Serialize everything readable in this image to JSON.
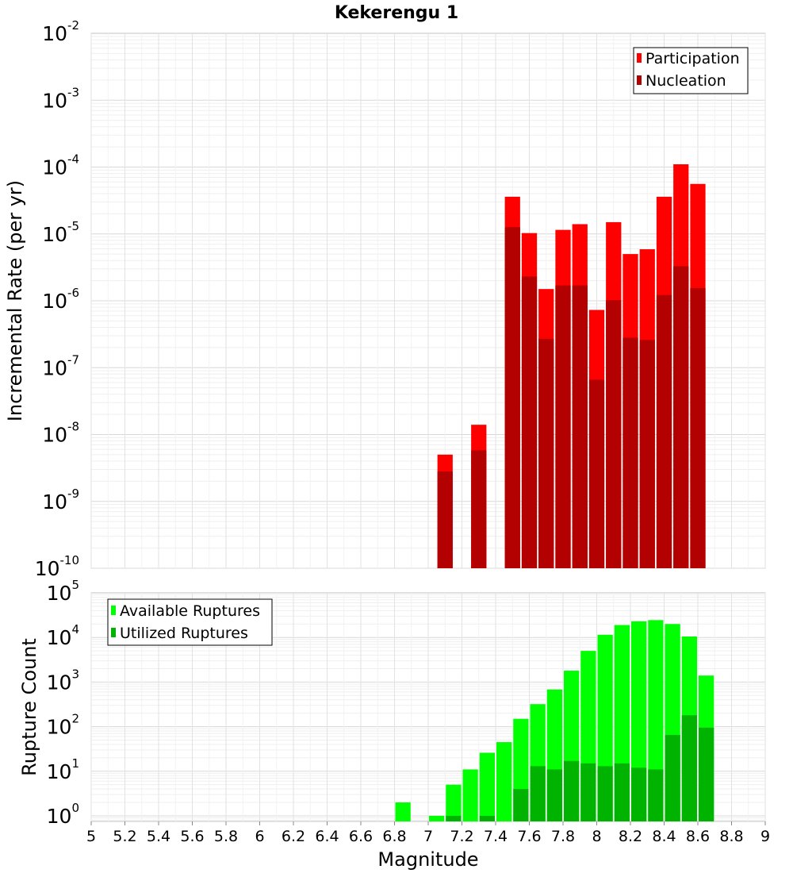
{
  "chart_data": [
    {
      "type": "bar",
      "title": "Kekerengu 1",
      "xlabel": "",
      "ylabel": "Incremental Rate (per yr)",
      "yscale": "log",
      "xlim": [
        5,
        9
      ],
      "ylim": [
        1e-10,
        0.01
      ],
      "y_tick_exponents": [
        -10,
        -9,
        -8,
        -7,
        -6,
        -5,
        -4,
        -3,
        -2
      ],
      "grid": true,
      "legend_position": "top-right",
      "x": [
        7.1,
        7.3,
        7.5,
        7.6,
        7.7,
        7.8,
        7.9,
        8.0,
        8.1,
        8.2,
        8.3,
        8.4,
        8.5,
        8.6
      ],
      "series": [
        {
          "name": "Participation",
          "color": "#ff0000",
          "values": [
            5e-09,
            1.4e-08,
            3.6e-05,
            1.03e-05,
            1.5e-06,
            1.15e-05,
            1.4e-05,
            7.3e-07,
            1.5e-05,
            5e-06,
            5.9e-06,
            3.6e-05,
            0.00011,
            5.6e-05
          ]
        },
        {
          "name": "Nucleation",
          "color": "#b30000",
          "values": [
            2.8e-09,
            5.8e-09,
            1.26e-05,
            2.3e-06,
            2.7e-07,
            1.7e-06,
            1.7e-06,
            6.6e-08,
            1.02e-06,
            2.8e-07,
            2.6e-07,
            1.22e-06,
            3.3e-06,
            1.55e-06
          ]
        }
      ]
    },
    {
      "type": "bar",
      "title": "",
      "xlabel": "Magnitude",
      "ylabel": "Rupture Count",
      "yscale": "log",
      "xlim": [
        5,
        9
      ],
      "ylim": [
        0.75,
        100000.0
      ],
      "y_tick_exponents": [
        0,
        1,
        2,
        3,
        4,
        5
      ],
      "x_tick_labels": [
        "5",
        "5.2",
        "5.4",
        "5.6",
        "5.8",
        "6",
        "6.2",
        "6.4",
        "6.6",
        "6.8",
        "7",
        "7.2",
        "7.4",
        "7.6",
        "7.8",
        "8",
        "8.2",
        "8.4",
        "8.6",
        "8.8",
        "9"
      ],
      "grid": true,
      "legend_position": "top-left",
      "x": [
        6.85,
        7.05,
        7.15,
        7.25,
        7.35,
        7.45,
        7.55,
        7.65,
        7.75,
        7.85,
        7.95,
        8.05,
        8.15,
        8.25,
        8.35,
        8.45,
        8.55,
        8.65
      ],
      "series": [
        {
          "name": "Available Ruptures",
          "color": "#00ff00",
          "values": [
            2,
            1,
            5,
            11,
            26,
            45,
            150,
            320,
            680,
            1800,
            5000,
            11500,
            19000,
            23000,
            24500,
            20000,
            10500,
            1400
          ]
        },
        {
          "name": "Utilized Ruptures",
          "color": "#00b300",
          "values": [
            0,
            0,
            1,
            0,
            1,
            0,
            4,
            13,
            11,
            17,
            15,
            13,
            15,
            12,
            11,
            65,
            180,
            95
          ]
        }
      ]
    }
  ]
}
